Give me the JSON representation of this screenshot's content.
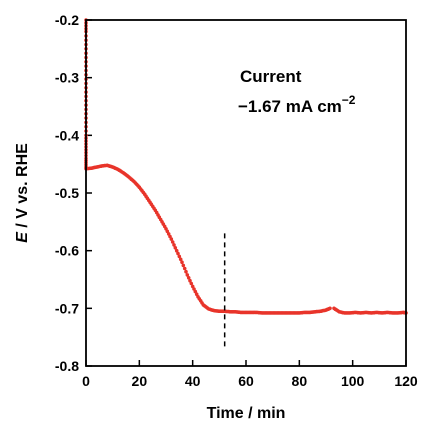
{
  "chart_data": {
    "type": "scatter",
    "title": "",
    "xlabel": "Time / min",
    "ylabel_italic": "E",
    "ylabel_rest": " / V vs. RHE",
    "xlim": [
      0,
      120
    ],
    "ylim": [
      -0.8,
      -0.2
    ],
    "xticks": [
      0,
      20,
      40,
      60,
      80,
      100,
      120
    ],
    "xtick_labels": [
      "0",
      "20",
      "40",
      "60",
      "80",
      "100",
      "120"
    ],
    "yticks": [
      -0.8,
      -0.7,
      -0.6,
      -0.5,
      -0.4,
      -0.3,
      -0.2
    ],
    "ytick_labels": [
      "-0.8",
      "-0.7",
      "-0.6",
      "-0.5",
      "-0.4",
      "-0.3",
      "-0.2"
    ],
    "annotation_line1": "Current",
    "annotation_line2_value": "−1.67 mA cm",
    "annotation_line2_sup": "−2",
    "marker_line": {
      "x": 52,
      "y_range": [
        -0.77,
        -0.57
      ]
    },
    "grid": false,
    "color": "#e8342a",
    "series": [
      {
        "segments": [
          {
            "x": [
              0,
              0,
              0,
              0,
              0,
              0,
              0,
              0,
              0,
              0,
              0
            ],
            "y": [
              -0.2,
              -0.22,
              -0.25,
              -0.28,
              -0.31,
              -0.34,
              -0.37,
              -0.4,
              -0.42,
              -0.44,
              -0.455
            ]
          },
          {
            "x": [
              0,
              2,
              4,
              6,
              8,
              10,
              12,
              14,
              16,
              18,
              20,
              22,
              24,
              26,
              28,
              30,
              32,
              34,
              36,
              38,
              40,
              42,
              44,
              46,
              48,
              50,
              52,
              54,
              56,
              58,
              60,
              62,
              64,
              66,
              68,
              70,
              72,
              74,
              76,
              78,
              80,
              82,
              84,
              86,
              88,
              90,
              91.5
            ],
            "y": [
              -0.458,
              -0.457,
              -0.455,
              -0.453,
              -0.452,
              -0.455,
              -0.459,
              -0.465,
              -0.472,
              -0.48,
              -0.49,
              -0.502,
              -0.516,
              -0.53,
              -0.546,
              -0.562,
              -0.58,
              -0.6,
              -0.62,
              -0.642,
              -0.662,
              -0.68,
              -0.694,
              -0.701,
              -0.704,
              -0.705,
              -0.705,
              -0.706,
              -0.706,
              -0.707,
              -0.707,
              -0.707,
              -0.707,
              -0.708,
              -0.708,
              -0.708,
              -0.708,
              -0.708,
              -0.708,
              -0.708,
              -0.708,
              -0.707,
              -0.707,
              -0.706,
              -0.705,
              -0.703,
              -0.7
            ]
          },
          {
            "x": [
              93,
              95,
              97,
              99,
              101,
              103,
              105,
              107,
              109,
              111,
              113,
              115,
              117,
              119,
              120
            ],
            "y": [
              -0.7,
              -0.706,
              -0.708,
              -0.708,
              -0.707,
              -0.708,
              -0.707,
              -0.708,
              -0.707,
              -0.708,
              -0.707,
              -0.708,
              -0.708,
              -0.707,
              -0.708
            ]
          }
        ]
      }
    ]
  }
}
